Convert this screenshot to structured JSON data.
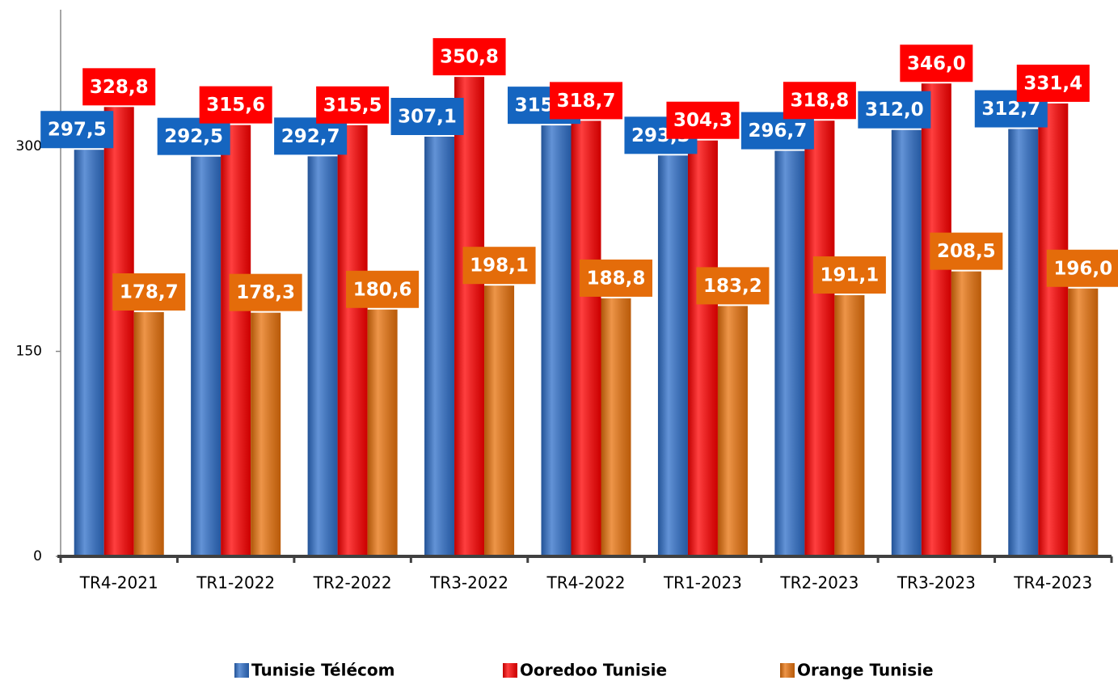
{
  "chart_data": {
    "type": "bar",
    "categories": [
      "TR4-2021",
      "TR1-2022",
      "TR2-2022",
      "TR3-2022",
      "TR4-2022",
      "TR1-2023",
      "TR2-2023",
      "TR3-2023",
      "TR4-2023"
    ],
    "series": [
      {
        "name": "Tunisie Télécom",
        "color": "#2f6fc9",
        "label_color": "#1565c0",
        "values": [
          297.5,
          292.5,
          292.7,
          307.1,
          315.3,
          293.3,
          296.7,
          312.0,
          312.7
        ],
        "value_labels": [
          "297,5",
          "292,5",
          "292,7",
          "307,1",
          "315,3",
          "293,3",
          "296,7",
          "312,0",
          "312,7"
        ]
      },
      {
        "name": "Ooredoo Tunisie",
        "color": "#ff0000",
        "label_color": "#ff0000",
        "values": [
          328.8,
          315.6,
          315.5,
          350.8,
          318.7,
          304.3,
          318.8,
          346.0,
          331.4
        ],
        "value_labels": [
          "328,8",
          "315,6",
          "315,5",
          "350,8",
          "318,7",
          "304,3",
          "318,8",
          "346,0",
          "331,4"
        ]
      },
      {
        "name": "Orange Tunisie",
        "color": "#e8720c",
        "label_color": "#e46c0a",
        "values": [
          178.7,
          178.3,
          180.6,
          198.1,
          188.8,
          183.2,
          191.1,
          208.5,
          196.0
        ],
        "value_labels": [
          "178,7",
          "178,3",
          "180,6",
          "198,1",
          "188,8",
          "183,2",
          "191,1",
          "208,5",
          "196,0"
        ]
      }
    ],
    "ylim": [
      0,
      400
    ],
    "yticks": [
      0,
      150,
      300
    ],
    "legend": "bottom"
  }
}
